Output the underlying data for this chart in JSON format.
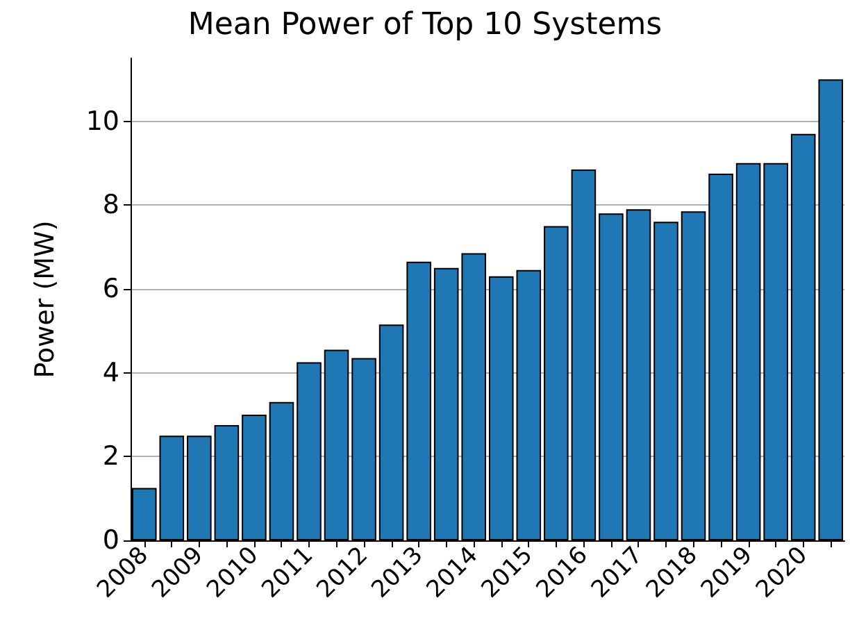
{
  "chart_data": {
    "type": "bar",
    "title": "Mean Power of Top 10 Systems",
    "ylabel": "Power (MW)",
    "categories": [
      "2008",
      null,
      "2009",
      null,
      "2010",
      null,
      "2011",
      null,
      "2012",
      null,
      "2013",
      null,
      "2014",
      null,
      "2015",
      null,
      "2016",
      null,
      "2017",
      null,
      "2018",
      null,
      "2019",
      null,
      "2020",
      null
    ],
    "values": [
      1.25,
      2.5,
      2.5,
      2.75,
      3.0,
      3.3,
      4.25,
      4.55,
      4.35,
      5.15,
      6.65,
      6.5,
      6.85,
      6.3,
      6.45,
      7.5,
      8.85,
      7.8,
      7.9,
      7.6,
      7.85,
      8.75,
      9.0,
      9.0,
      9.7,
      11.0
    ],
    "color": "#1f77b4",
    "ylim": [
      0,
      11.5
    ],
    "yticks": [
      0,
      2,
      4,
      6,
      8,
      10
    ],
    "grid": "y"
  }
}
